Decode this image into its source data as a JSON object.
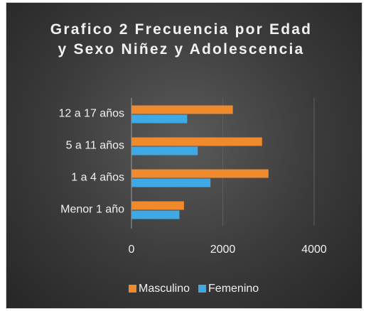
{
  "chart_data": {
    "type": "bar",
    "orientation": "horizontal",
    "title": "Grafico 2 Frecuencia por Edad y Sexo Niñez y Adolescencia",
    "categories": [
      "Menor 1 año",
      "1 a 4 años",
      "5 a 11 años",
      "12 a 17 años"
    ],
    "series": [
      {
        "name": "Masculino",
        "color": "#f08a2c",
        "values": [
          1150,
          3000,
          2860,
          2220
        ]
      },
      {
        "name": "Femenino",
        "color": "#3fa9e6",
        "values": [
          1050,
          1730,
          1450,
          1220
        ]
      }
    ],
    "xlim": [
      0,
      4000
    ],
    "xticks": [
      0,
      2000,
      4000
    ],
    "grid": true,
    "legend": "bottom"
  }
}
